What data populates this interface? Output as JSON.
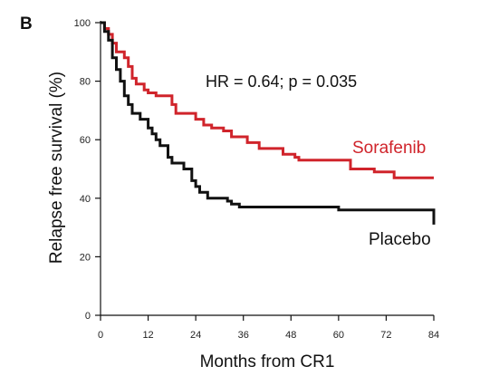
{
  "chart_data": {
    "type": "line",
    "panel_label": "B",
    "xlabel": "Months from CR1",
    "ylabel": "Relapse free survival (%)",
    "xlim": [
      0,
      84
    ],
    "ylim": [
      0,
      100
    ],
    "xticks": [
      0,
      12,
      24,
      36,
      48,
      60,
      72,
      84
    ],
    "yticks": [
      0,
      20,
      40,
      60,
      80,
      100
    ],
    "annotation": "HR = 0.64; p = 0.035",
    "grid": false,
    "series": [
      {
        "name": "Sorafenib",
        "color": "#d0242b",
        "steps": [
          [
            0,
            100
          ],
          [
            1,
            98
          ],
          [
            2,
            96
          ],
          [
            3,
            93
          ],
          [
            4,
            90
          ],
          [
            6,
            88
          ],
          [
            7,
            85
          ],
          [
            8,
            81
          ],
          [
            9,
            79
          ],
          [
            11,
            77
          ],
          [
            12,
            76
          ],
          [
            14,
            75
          ],
          [
            18,
            72
          ],
          [
            19,
            69
          ],
          [
            24,
            67
          ],
          [
            26,
            65
          ],
          [
            28,
            64
          ],
          [
            31,
            63
          ],
          [
            33,
            61
          ],
          [
            37,
            59
          ],
          [
            40,
            57
          ],
          [
            46,
            55
          ],
          [
            49,
            54
          ],
          [
            50,
            53
          ],
          [
            63,
            50
          ],
          [
            69,
            49
          ],
          [
            74,
            47
          ],
          [
            84,
            47
          ]
        ]
      },
      {
        "name": "Placebo",
        "color": "#111111",
        "steps": [
          [
            0,
            100
          ],
          [
            1,
            97
          ],
          [
            2,
            94
          ],
          [
            3,
            88
          ],
          [
            4,
            84
          ],
          [
            5,
            80
          ],
          [
            6,
            75
          ],
          [
            7,
            72
          ],
          [
            8,
            69
          ],
          [
            10,
            67
          ],
          [
            12,
            64
          ],
          [
            13,
            62
          ],
          [
            14,
            60
          ],
          [
            15,
            58
          ],
          [
            17,
            54
          ],
          [
            18,
            52
          ],
          [
            21,
            50
          ],
          [
            23,
            46
          ],
          [
            24,
            44
          ],
          [
            25,
            42
          ],
          [
            27,
            40
          ],
          [
            32,
            39
          ],
          [
            33,
            38
          ],
          [
            35,
            37
          ],
          [
            60,
            36
          ],
          [
            84,
            31
          ]
        ]
      }
    ],
    "series_label_colors": {
      "Sorafenib": "#d0242b",
      "Placebo": "#111111"
    }
  }
}
